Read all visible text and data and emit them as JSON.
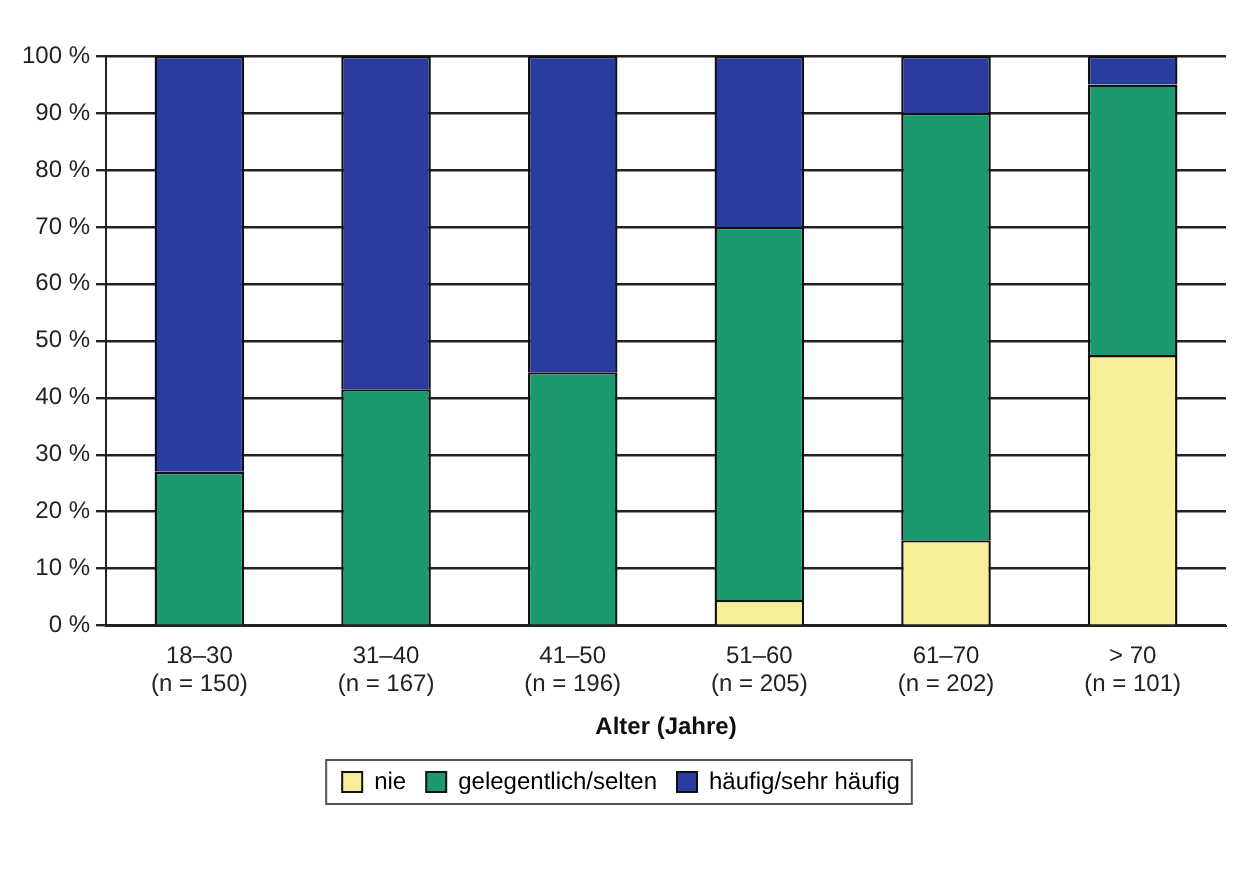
{
  "chart_data": {
    "type": "bar",
    "stacked": true,
    "xlabel": "Alter (Jahre)",
    "categories": [
      "18–30\n(n = 150)",
      "31–40\n(n = 167)",
      "41–50\n(n = 196)",
      "51–60\n(n = 205)",
      "61–70\n(n = 202)",
      "> 70\n(n = 101)"
    ],
    "series": [
      {
        "name": "nie",
        "color": "#f5ef9a",
        "values": [
          0,
          null,
          null,
          4.5,
          15,
          47.5
        ]
      },
      {
        "name": "gelegentlich/selten",
        "color": "#1a9a6e",
        "values": [
          27,
          41.5,
          44.5,
          65.5,
          75,
          47.5
        ]
      },
      {
        "name": "häufig/sehr häufig",
        "color": "#2a3ca0",
        "values": [
          73,
          58.5,
          55.5,
          30,
          10,
          5
        ]
      }
    ],
    "ylim": [
      0,
      100
    ],
    "yticks": [
      {
        "value": 0,
        "label": "0 %"
      },
      {
        "value": 10,
        "label": "10 %"
      },
      {
        "value": 20,
        "label": "20 %"
      },
      {
        "value": 30,
        "label": "30 %"
      },
      {
        "value": 40,
        "label": "40 %"
      },
      {
        "value": 50,
        "label": "50 %"
      },
      {
        "value": 60,
        "label": "60 %"
      },
      {
        "value": 70,
        "label": "70 %"
      },
      {
        "value": 80,
        "label": "80 %"
      },
      {
        "value": 90,
        "label": "90 %"
      },
      {
        "value": 100,
        "label": "100 %"
      }
    ],
    "grid": "y",
    "legend": "bottom"
  }
}
